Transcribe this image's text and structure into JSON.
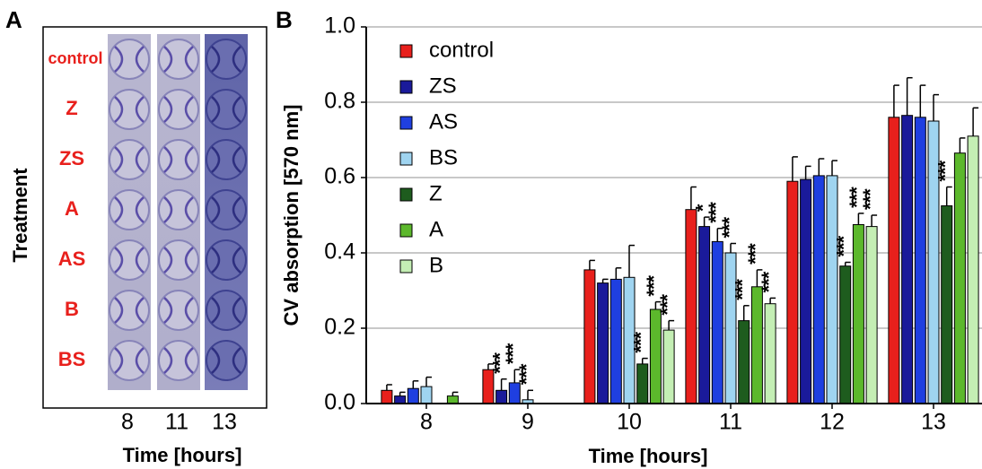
{
  "chart_data": [
    {
      "type": "image",
      "label": "A",
      "ylabel": "Treatment",
      "xlabel": "Time [hours]",
      "rows": [
        "control",
        "Z",
        "ZS",
        "A",
        "AS",
        "B",
        "BS"
      ],
      "categories": [
        "8",
        "11",
        "13"
      ]
    },
    {
      "type": "bar",
      "label": "B",
      "ylabel": "CV absorption [570 nm]",
      "xlabel": "Time [hours]",
      "categories": [
        "8",
        "9",
        "10",
        "11",
        "12",
        "13"
      ],
      "ylim": [
        0,
        1
      ],
      "yticks": [
        {
          "value": 0,
          "label": "0.0"
        },
        0.2,
        0.4,
        0.6,
        0.8,
        {
          "value": 1,
          "label": "1.0"
        }
      ],
      "grid": true,
      "legend": "top-left",
      "series": [
        {
          "name": "control",
          "color": "#e8201c",
          "values": [
            0.035,
            0.09,
            0.355,
            0.515,
            0.59,
            0.76
          ],
          "errors": [
            0.015,
            0.015,
            0.025,
            0.06,
            0.065,
            0.085
          ],
          "significance": [
            null,
            null,
            null,
            null,
            null,
            null
          ]
        },
        {
          "name": "ZS",
          "color": "#1a1a9a",
          "values": [
            0.02,
            0.035,
            0.32,
            0.47,
            0.595,
            0.765
          ],
          "errors": [
            0.01,
            0.03,
            0.01,
            0.025,
            0.035,
            0.1
          ],
          "significance": [
            null,
            "***",
            null,
            "*",
            null,
            null
          ]
        },
        {
          "name": "AS",
          "color": "#1f3fe0",
          "values": [
            0.04,
            0.055,
            0.33,
            0.43,
            0.605,
            0.76
          ],
          "errors": [
            0.02,
            0.035,
            0.03,
            0.035,
            0.045,
            0.085
          ],
          "significance": [
            null,
            "***",
            null,
            "***",
            null,
            null
          ]
        },
        {
          "name": "BS",
          "color": "#9fd4f0",
          "values": [
            0.045,
            0.01,
            0.335,
            0.4,
            0.605,
            0.75
          ],
          "errors": [
            0.025,
            0.025,
            0.085,
            0.025,
            0.04,
            0.07
          ],
          "significance": [
            null,
            "***",
            null,
            "***",
            null,
            null
          ]
        },
        {
          "name": "Z",
          "color": "#1e5c1e",
          "values": [
            null,
            null,
            0.105,
            0.22,
            0.365,
            0.525
          ],
          "errors": [
            null,
            null,
            0.015,
            0.04,
            0.01,
            0.05
          ],
          "significance": [
            null,
            null,
            "***",
            "***",
            "***",
            "***"
          ]
        },
        {
          "name": "A",
          "color": "#5cb82c",
          "values": [
            0.02,
            null,
            0.25,
            0.31,
            0.475,
            0.665
          ],
          "errors": [
            0.01,
            null,
            0.02,
            0.045,
            0.03,
            0.04
          ],
          "significance": [
            null,
            null,
            "***",
            "***",
            "***",
            null
          ]
        },
        {
          "name": "B",
          "color": "#c4eeb4",
          "values": [
            null,
            null,
            0.195,
            0.265,
            0.47,
            0.71
          ],
          "errors": [
            null,
            null,
            0.025,
            0.015,
            0.03,
            0.075
          ],
          "significance": [
            null,
            null,
            "***",
            "***",
            "***",
            null
          ]
        }
      ]
    }
  ]
}
